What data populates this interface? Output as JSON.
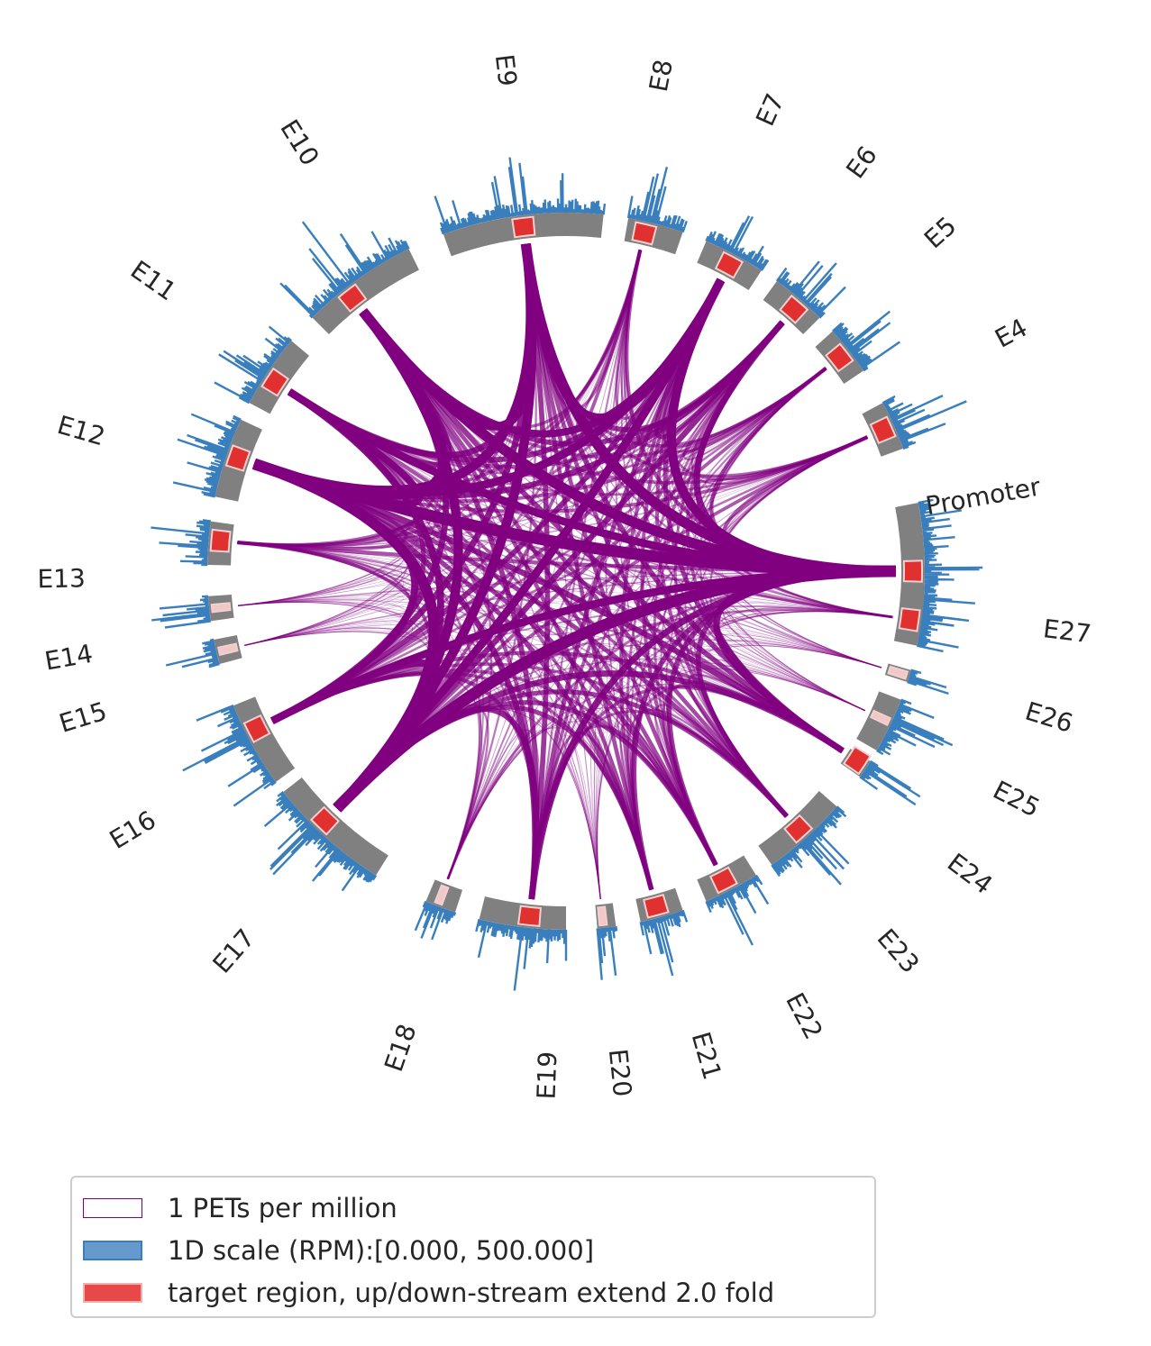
{
  "colors": {
    "link": "#800080",
    "segment": "#808080",
    "coverage": "#3a7fbd",
    "target": "#e03030",
    "target_border": "#f2d0d0"
  },
  "segments": [
    "Promoter",
    "E4",
    "E5",
    "E6",
    "E7",
    "E8",
    "E9",
    "E10",
    "E11",
    "E12",
    "E13",
    "E14",
    "E15",
    "E16",
    "E17",
    "E18",
    "E19",
    "E20",
    "E21",
    "E22",
    "E23",
    "E24",
    "E25",
    "E26",
    "E27"
  ],
  "legend": {
    "items": [
      {
        "label": "1 PETs per million",
        "swatch": "link-outline"
      },
      {
        "label": "1D scale (RPM):[0.000, 500.000]",
        "swatch": "coverage"
      },
      {
        "label": "target region, up/down-stream extend 2.0 fold",
        "swatch": "target"
      }
    ]
  }
}
